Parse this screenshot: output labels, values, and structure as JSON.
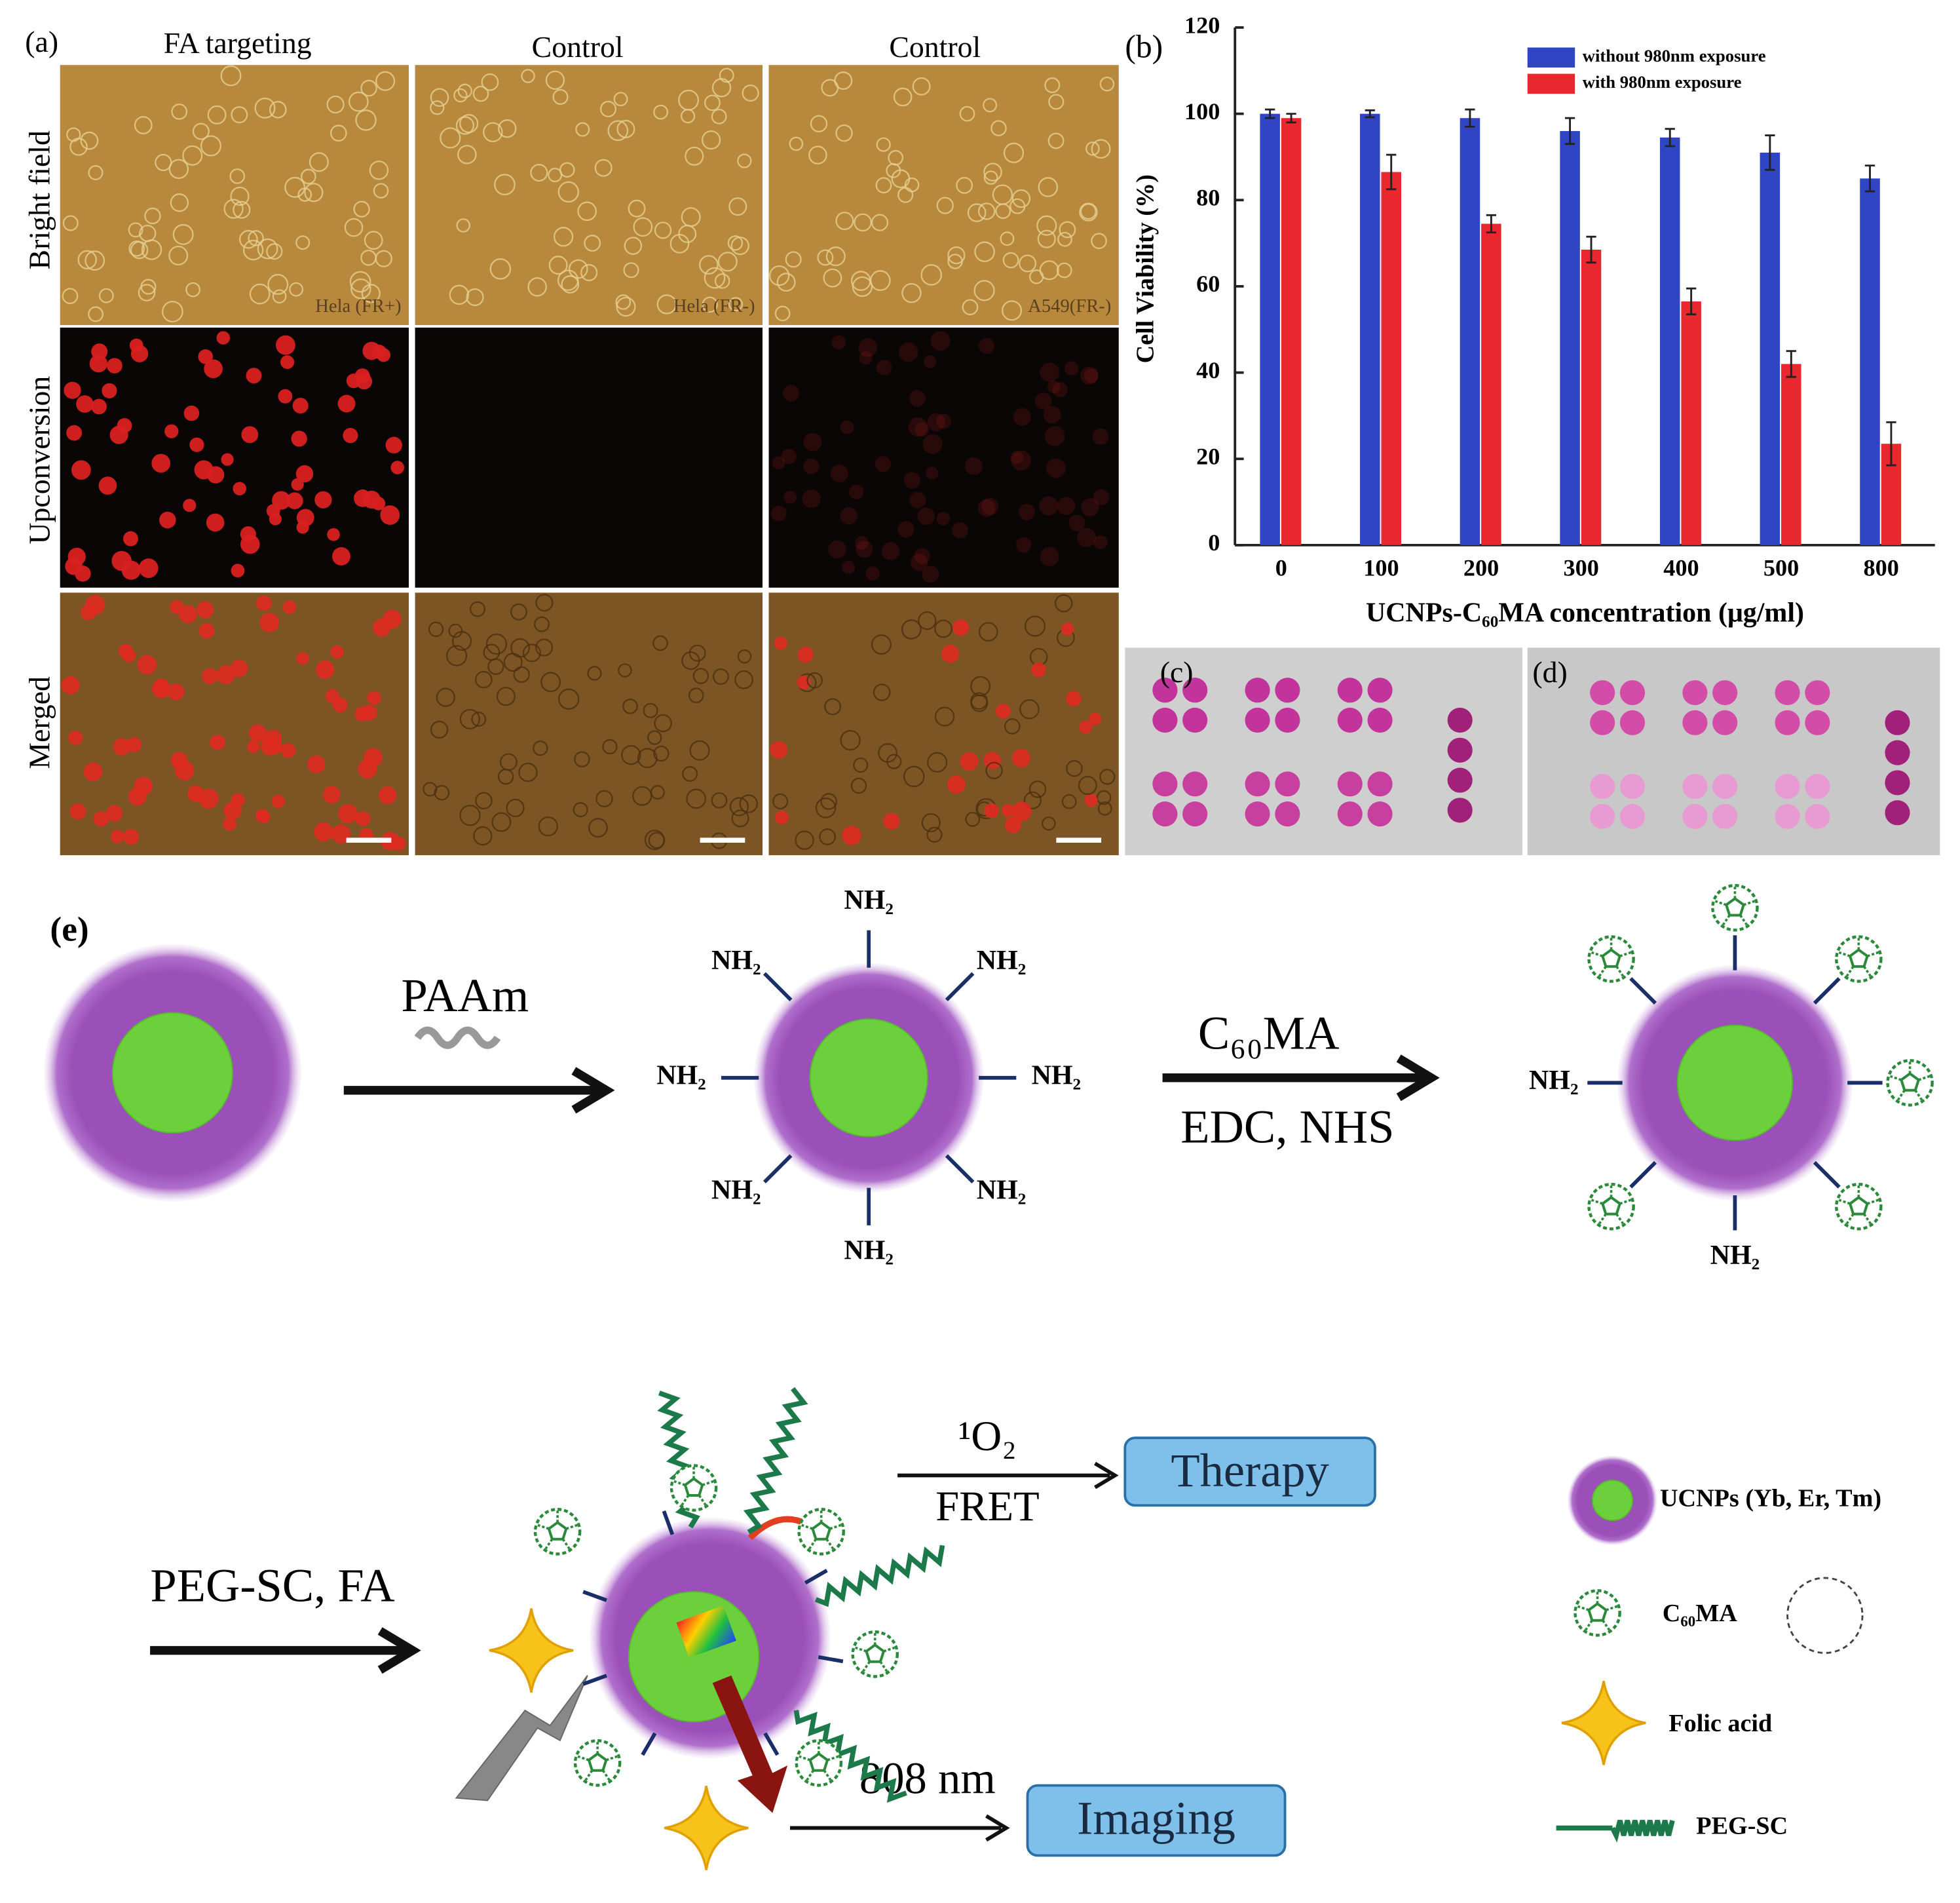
{
  "panel_a": {
    "label": "(a)",
    "columns": [
      "FA targeting",
      "Control",
      "Control"
    ],
    "rows": [
      "Bright field",
      "Upconversion",
      "Merged"
    ],
    "cell_labels": [
      "Hela (FR+)",
      "Hela (FR-)",
      "A549(FR-)"
    ]
  },
  "chart_data": {
    "type": "bar",
    "label": "(b)",
    "categories": [
      "0",
      "100",
      "200",
      "300",
      "400",
      "500",
      "800"
    ],
    "series": [
      {
        "name": "without 980nm exposure",
        "color": "#2f45c4",
        "values": [
          100,
          100,
          99,
          96,
          94.5,
          91,
          85
        ],
        "errors": [
          1,
          0.8,
          2,
          3,
          2,
          4,
          3
        ]
      },
      {
        "name": "with 980nm exposure",
        "color": "#e8282e",
        "values": [
          99,
          86.5,
          74.5,
          68.5,
          56.5,
          42,
          23.5
        ],
        "errors": [
          1,
          4,
          2,
          3,
          3,
          3,
          5
        ]
      }
    ],
    "ylim": [
      0,
      120
    ],
    "yticks": [
      0,
      20,
      40,
      60,
      80,
      100,
      120
    ],
    "xlabel": "UCNPs-C₆₀MA concentration (μg/ml)",
    "ylabel": "Cell Viability (%)",
    "legend": "upper right",
    "grid": false
  },
  "panel_c": {
    "label": "(c)"
  },
  "panel_d": {
    "label": "(d)"
  },
  "scheme": {
    "label": "(e)",
    "step1": {
      "reagent": "PAAm"
    },
    "step1_groups": [
      "NH₂",
      "NH₂",
      "NH₂",
      "NH₂",
      "NH₂",
      "NH₂",
      "NH₂",
      "NH₂"
    ],
    "step2": {
      "reagent": "C₆₀MA",
      "conditions": "EDC, NHS"
    },
    "step2_groups": [
      "NH₂",
      "NH₂"
    ],
    "step3": {
      "reagents": "PEG-SC, FA"
    },
    "therapy": {
      "over": "¹O₂",
      "under": "FRET",
      "box": "Therapy"
    },
    "imaging": {
      "over": "808 nm",
      "box": "Imaging"
    },
    "legend": [
      "UCNPs (Yb, Er, Tm)",
      "C₆₀MA",
      "Folic acid",
      "PEG-SC"
    ]
  }
}
